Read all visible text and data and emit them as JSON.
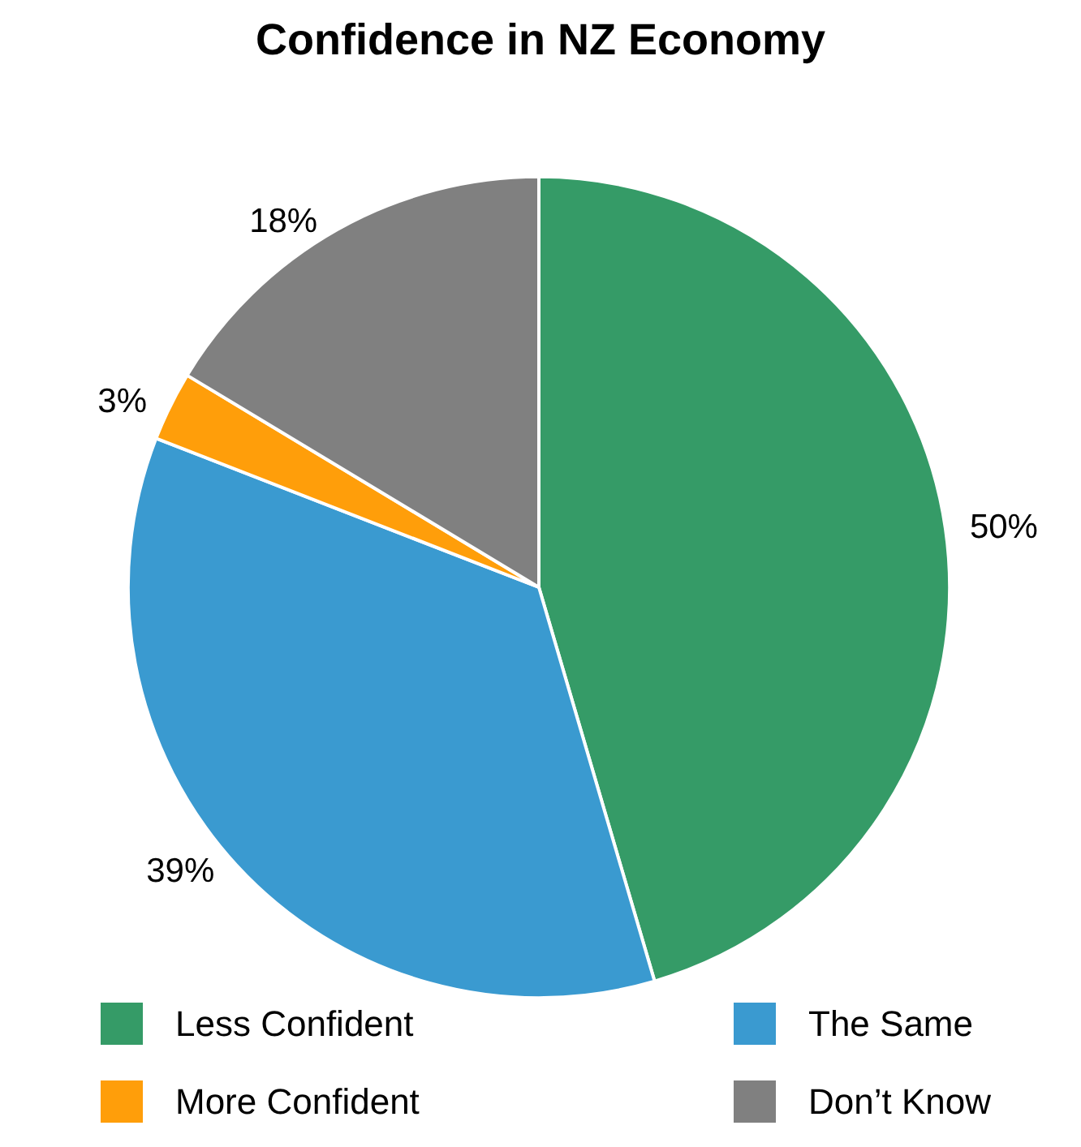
{
  "chart_data": {
    "type": "pie",
    "title": "Confidence in NZ Economy",
    "categories": [
      "Less Confident",
      "The Same",
      "More Confident",
      "Don’t Know"
    ],
    "values": [
      50,
      39,
      3,
      18
    ],
    "value_labels": [
      "50%",
      "39%",
      "3%",
      "18%"
    ],
    "colors": [
      "#359b67",
      "#3a9ad0",
      "#ff9e0a",
      "#808080"
    ],
    "legend": "bottom"
  }
}
